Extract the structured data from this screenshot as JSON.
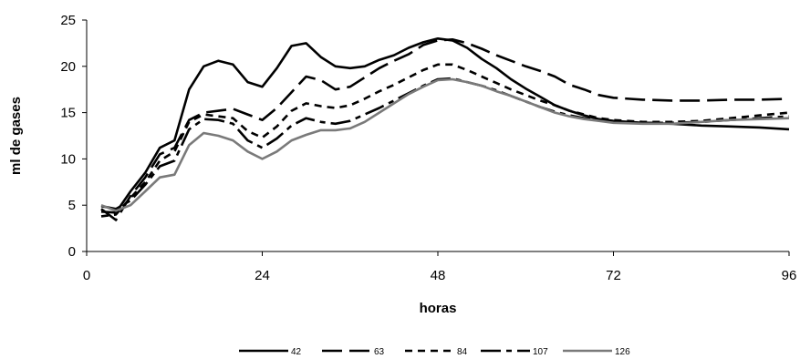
{
  "chart_data": {
    "type": "line",
    "title": "",
    "xlabel": "horas",
    "ylabel": "ml de gases",
    "xlim": [
      0,
      96
    ],
    "ylim": [
      0,
      25
    ],
    "x_ticks": [
      0,
      24,
      48,
      72,
      96
    ],
    "y_ticks": [
      0,
      5,
      10,
      15,
      20,
      25
    ],
    "grid": false,
    "legend_placement": "bottom",
    "series": [
      {
        "name": "42",
        "color": "#000000",
        "dash": "solid",
        "x": [
          2,
          4,
          6,
          8,
          10,
          12,
          14,
          16,
          18,
          20,
          22,
          24,
          26,
          28,
          30,
          32,
          34,
          36,
          38,
          40,
          42,
          44,
          46,
          48,
          50,
          52,
          54,
          56,
          58,
          60,
          62,
          64,
          66,
          68,
          70,
          72,
          76,
          80,
          84,
          88,
          92,
          96
        ],
        "y": [
          4.3,
          4.2,
          6.5,
          8.5,
          11.2,
          12.0,
          17.5,
          20.0,
          20.6,
          20.2,
          18.3,
          17.8,
          19.8,
          22.2,
          22.5,
          21.0,
          20.0,
          19.8,
          20.0,
          20.7,
          21.2,
          22.0,
          22.6,
          23.0,
          22.8,
          22.0,
          20.8,
          19.8,
          18.6,
          17.6,
          16.7,
          15.8,
          15.2,
          14.7,
          14.3,
          14.1,
          13.9,
          13.8,
          13.6,
          13.5,
          13.4,
          13.2
        ]
      },
      {
        "name": "63",
        "color": "#000000",
        "dash": "long",
        "x": [
          2,
          4,
          6,
          8,
          10,
          12,
          14,
          16,
          18,
          20,
          22,
          24,
          26,
          28,
          30,
          32,
          34,
          36,
          38,
          40,
          42,
          44,
          46,
          48,
          50,
          52,
          54,
          56,
          58,
          60,
          62,
          64,
          66,
          68,
          70,
          72,
          76,
          80,
          84,
          88,
          92,
          96
        ],
        "y": [
          4.6,
          3.4,
          6.0,
          8.0,
          10.5,
          11.2,
          14.2,
          15.0,
          15.2,
          15.4,
          14.8,
          14.2,
          15.5,
          17.2,
          18.9,
          18.5,
          17.5,
          17.8,
          18.8,
          19.8,
          20.6,
          21.3,
          22.3,
          22.8,
          22.9,
          22.5,
          21.9,
          21.2,
          20.6,
          20.0,
          19.5,
          18.9,
          18.0,
          17.5,
          16.9,
          16.6,
          16.4,
          16.3,
          16.3,
          16.4,
          16.4,
          16.5
        ]
      },
      {
        "name": "84",
        "color": "#000000",
        "dash": "short",
        "x": [
          2,
          4,
          6,
          8,
          10,
          12,
          14,
          16,
          18,
          20,
          22,
          24,
          26,
          28,
          30,
          32,
          34,
          36,
          38,
          40,
          42,
          44,
          46,
          48,
          50,
          52,
          54,
          56,
          58,
          60,
          62,
          64,
          66,
          68,
          70,
          72,
          76,
          80,
          84,
          88,
          92,
          96
        ],
        "y": [
          3.8,
          4.0,
          5.8,
          7.5,
          9.8,
          10.8,
          14.0,
          14.8,
          14.6,
          14.4,
          13.0,
          12.3,
          13.5,
          15.2,
          16.0,
          15.7,
          15.5,
          15.8,
          16.5,
          17.3,
          18.0,
          18.8,
          19.6,
          20.2,
          20.2,
          19.6,
          18.9,
          18.2,
          17.5,
          16.9,
          16.3,
          15.8,
          15.2,
          14.8,
          14.4,
          14.2,
          14.0,
          14.0,
          14.1,
          14.4,
          14.7,
          15.0
        ]
      },
      {
        "name": "107",
        "color": "#000000",
        "dash": "dashdot",
        "x": [
          2,
          4,
          6,
          8,
          10,
          12,
          14,
          16,
          18,
          20,
          22,
          24,
          26,
          28,
          30,
          32,
          34,
          36,
          38,
          40,
          42,
          44,
          46,
          48,
          50,
          52,
          54,
          56,
          58,
          60,
          62,
          64,
          66,
          68,
          70,
          72,
          76,
          80,
          84,
          88,
          92,
          96
        ],
        "y": [
          4.9,
          4.6,
          5.5,
          7.2,
          9.2,
          9.8,
          13.2,
          14.3,
          14.2,
          13.8,
          12.0,
          11.2,
          12.2,
          13.6,
          14.4,
          14.0,
          13.8,
          14.1,
          14.8,
          15.5,
          16.3,
          17.1,
          17.9,
          18.6,
          18.7,
          18.3,
          17.9,
          17.4,
          16.8,
          16.2,
          15.6,
          15.1,
          14.7,
          14.4,
          14.2,
          14.0,
          13.9,
          13.9,
          14.0,
          14.2,
          14.4,
          14.6
        ]
      },
      {
        "name": "126",
        "color": "#7a7a7a",
        "dash": "solid",
        "x": [
          2,
          4,
          6,
          8,
          10,
          12,
          14,
          16,
          18,
          20,
          22,
          24,
          26,
          28,
          30,
          32,
          34,
          36,
          38,
          40,
          42,
          44,
          46,
          48,
          50,
          52,
          54,
          56,
          58,
          60,
          62,
          64,
          66,
          68,
          70,
          72,
          76,
          80,
          84,
          88,
          92,
          96
        ],
        "y": [
          5.0,
          4.4,
          5.0,
          6.5,
          8.0,
          8.3,
          11.5,
          12.8,
          12.5,
          12.0,
          10.8,
          10.0,
          10.8,
          12.0,
          12.6,
          13.1,
          13.1,
          13.3,
          14.0,
          15.0,
          16.0,
          17.0,
          17.8,
          18.5,
          18.6,
          18.3,
          17.9,
          17.3,
          16.8,
          16.2,
          15.6,
          15.0,
          14.6,
          14.3,
          14.1,
          13.9,
          13.8,
          13.8,
          14.0,
          14.2,
          14.3,
          14.4
        ]
      }
    ]
  }
}
